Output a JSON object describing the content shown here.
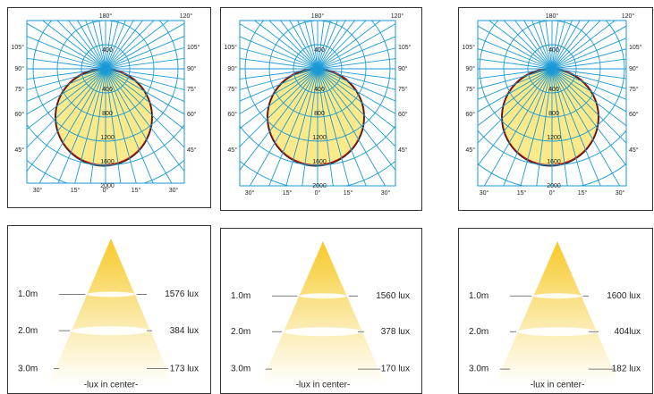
{
  "polar_diagrams": [
    {
      "top_labels": [
        "180°",
        "120°"
      ],
      "left_labels": [
        "105°",
        "90°",
        "75°",
        "60°",
        "45°"
      ],
      "right_labels": [
        "105°",
        "90°",
        "75°",
        "60°",
        "45°"
      ],
      "bottom_labels": [
        "30°",
        "15°",
        "0°",
        "15°",
        "30°"
      ],
      "radial_labels": [
        "400",
        "400",
        "800",
        "1200",
        "1600",
        "2000"
      ]
    },
    {
      "top_labels": [
        "180°",
        "120°"
      ],
      "left_labels": [
        "105°",
        "90°",
        "75°",
        "60°",
        "45°"
      ],
      "right_labels": [
        "105°",
        "90°",
        "75°",
        "60°",
        "45°"
      ],
      "bottom_labels": [
        "30°",
        "15°",
        "0°",
        "15°",
        "30°"
      ],
      "radial_labels": [
        "400",
        "400",
        "800",
        "1200",
        "1600",
        "2000"
      ]
    },
    {
      "top_labels": [
        "180°",
        "120°"
      ],
      "left_labels": [
        "105°",
        "90°",
        "75°",
        "60°",
        "45°"
      ],
      "right_labels": [
        "105°",
        "90°",
        "75°",
        "60°",
        "45°"
      ],
      "bottom_labels": [
        "30°",
        "15°",
        "0°",
        "15°",
        "30°"
      ],
      "radial_labels": [
        "400",
        "400",
        "800",
        "1200",
        "1600",
        "2000"
      ]
    }
  ],
  "lux_cones": [
    {
      "distances": [
        "1.0m",
        "2.0m",
        "3.0m"
      ],
      "lux": [
        "1576 lux",
        "384 lux",
        "173 lux"
      ],
      "caption": "-lux in center-"
    },
    {
      "distances": [
        "1.0m",
        "2.0m",
        "3.0m"
      ],
      "lux": [
        "1560 lux",
        "378 lux",
        "170 lux"
      ],
      "caption": "-lux in center-"
    },
    {
      "distances": [
        "1.0m",
        "2.0m",
        "3.0m"
      ],
      "lux": [
        "1600 lux",
        "404lux",
        "182 lux"
      ],
      "caption": "-lux in center-"
    }
  ]
}
